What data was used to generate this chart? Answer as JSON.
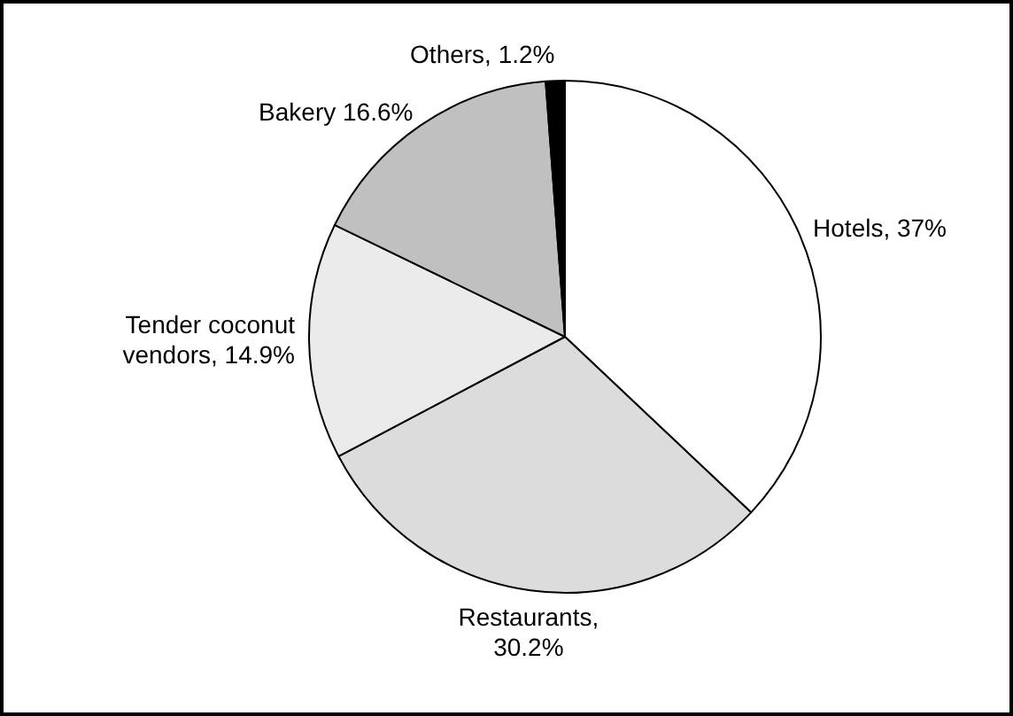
{
  "chart_data": {
    "type": "pie",
    "categories": [
      "Hotels, 37%",
      "Restaurants, 30.2%",
      "Tender coconut vendors, 14.9%",
      "Bakery 16.6%",
      "Others, 1.2%"
    ],
    "values": [
      37,
      30.2,
      14.9,
      16.6,
      1.2
    ],
    "colors": [
      "#ffffff",
      "#dcdcdc",
      "#ebebeb",
      "#c0c0c0",
      "#000000"
    ],
    "legend": false
  }
}
